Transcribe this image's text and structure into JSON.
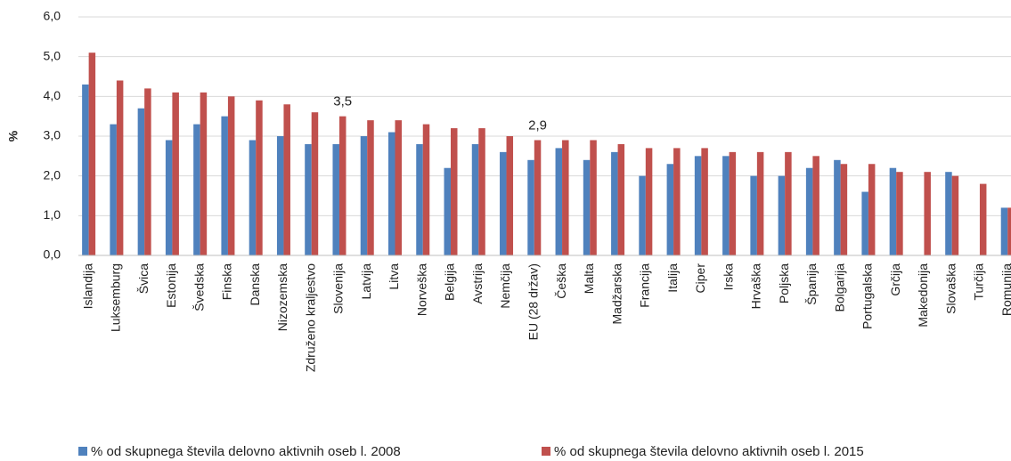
{
  "chart_data": {
    "type": "bar",
    "ylabel": "%",
    "categories": [
      "Islandija",
      "Luksemburg",
      "Švica",
      "Estonija",
      "Švedska",
      "Finska",
      "Danska",
      "Nizozemska",
      "Združeno kraljestvo",
      "Slovenija",
      "Latvija",
      "Litva",
      "Norveška",
      "Belgija",
      "Avstrija",
      "Nemčija",
      "EU (28 držav)",
      "Češka",
      "Malta",
      "Madžarska",
      "Francija",
      "Italija",
      "Ciper",
      "Irska",
      "Hrvaška",
      "Poljska",
      "Španija",
      "Bolgarija",
      "Portugalska",
      "Grčija",
      "Makedonija",
      "Slovaška",
      "Turčija",
      "Romunija"
    ],
    "series": [
      {
        "name": "% od skupnega števila delovno aktivnih oseb l. 2008",
        "color": "#4f81bd",
        "values": [
          4.3,
          3.3,
          3.7,
          2.9,
          3.3,
          3.5,
          2.9,
          3.0,
          2.8,
          2.8,
          3.0,
          3.1,
          2.8,
          2.2,
          2.8,
          2.6,
          2.4,
          2.7,
          2.4,
          2.6,
          2.0,
          2.3,
          2.5,
          2.5,
          2.0,
          2.0,
          2.2,
          2.4,
          1.6,
          2.2,
          null,
          2.1,
          null,
          1.2
        ]
      },
      {
        "name": "% od skupnega števila delovno aktivnih oseb l. 2015",
        "color": "#c0504d",
        "values": [
          5.1,
          4.4,
          4.2,
          4.1,
          4.1,
          4.0,
          3.9,
          3.8,
          3.6,
          3.5,
          3.4,
          3.4,
          3.3,
          3.2,
          3.2,
          3.0,
          2.9,
          2.9,
          2.9,
          2.8,
          2.7,
          2.7,
          2.7,
          2.6,
          2.6,
          2.6,
          2.5,
          2.3,
          2.3,
          2.1,
          2.1,
          2.0,
          1.8,
          1.2
        ],
        "value_labels": [
          null,
          null,
          null,
          null,
          null,
          null,
          null,
          null,
          null,
          "3,5",
          null,
          null,
          null,
          null,
          null,
          null,
          "2,9",
          null,
          null,
          null,
          null,
          null,
          null,
          null,
          null,
          null,
          null,
          null,
          null,
          null,
          null,
          null,
          null,
          null
        ]
      }
    ],
    "ylim": [
      0,
      6
    ],
    "yticks": [
      {
        "value": 0,
        "label": "0,0"
      },
      {
        "value": 1,
        "label": "1,0"
      },
      {
        "value": 2,
        "label": "2,0"
      },
      {
        "value": 3,
        "label": "3,0"
      },
      {
        "value": 4,
        "label": "4,0"
      },
      {
        "value": 5,
        "label": "5,0"
      },
      {
        "value": 6,
        "label": "6,0"
      }
    ],
    "grid": true
  }
}
